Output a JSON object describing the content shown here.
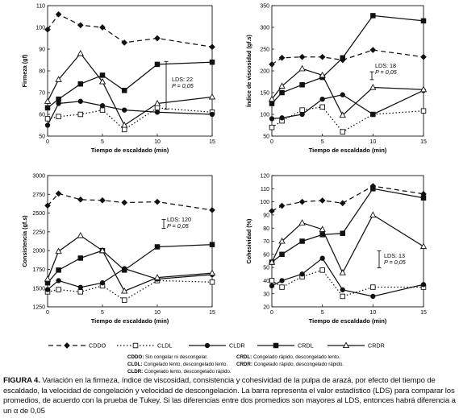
{
  "chart_data": [
    {
      "type": "line",
      "ylabel": "Firmeza (gf)",
      "xlabel": "Tiempo de escaldado (min)",
      "xlim": [
        0,
        15
      ],
      "ylim": [
        50,
        110
      ],
      "xticks": [
        "0",
        "5",
        "10",
        "15"
      ],
      "yticks": [
        "50",
        "60",
        "70",
        "80",
        "90",
        "100",
        "110"
      ],
      "annotation": {
        "lds_text": "LDS: 22",
        "p_text": "P = 0,05",
        "lds_value": 22
      },
      "series": [
        {
          "name": "CDDO",
          "x": [
            0,
            1,
            3,
            5,
            7,
            10,
            15
          ],
          "y": [
            99,
            106,
            101,
            100,
            93,
            95,
            91
          ]
        },
        {
          "name": "CLDL",
          "x": [
            0,
            1,
            3,
            5,
            7,
            10,
            15
          ],
          "y": [
            58,
            59,
            60,
            62,
            53,
            63,
            61
          ]
        },
        {
          "name": "CLDR",
          "x": [
            0,
            1,
            3,
            5,
            7,
            10,
            15
          ],
          "y": [
            55,
            65,
            66,
            64,
            62,
            61,
            60
          ]
        },
        {
          "name": "CRDL",
          "x": [
            0,
            1,
            3,
            5,
            7,
            10,
            15
          ],
          "y": [
            63,
            67,
            74,
            78,
            71,
            83,
            84
          ]
        },
        {
          "name": "CRDR",
          "x": [
            0,
            1,
            3,
            5,
            7,
            10,
            15
          ],
          "y": [
            66,
            76,
            88,
            75,
            55,
            65,
            68
          ]
        }
      ]
    },
    {
      "type": "line",
      "ylabel": "Índice de viscosidad (gf.s)",
      "xlabel": "Tiempo de escaldado (min)",
      "xlim": [
        0,
        15
      ],
      "ylim": [
        50,
        350
      ],
      "xticks": [
        "0",
        "5",
        "10",
        "15"
      ],
      "yticks": [
        "50",
        "100",
        "150",
        "200",
        "250",
        "300",
        "350"
      ],
      "annotation": {
        "lds_text": "LDS: 18",
        "p_text": "P = 0,05",
        "lds_value": 18
      },
      "series": [
        {
          "name": "CDDO",
          "x": [
            0,
            1,
            3,
            5,
            7,
            10,
            15
          ],
          "y": [
            215,
            230,
            232,
            232,
            225,
            248,
            232
          ]
        },
        {
          "name": "CLDL",
          "x": [
            0,
            1,
            3,
            5,
            7,
            10,
            15
          ],
          "y": [
            70,
            85,
            110,
            117,
            60,
            100,
            108
          ]
        },
        {
          "name": "CLDR",
          "x": [
            0,
            1,
            3,
            5,
            7,
            10,
            15
          ],
          "y": [
            90,
            92,
            100,
            135,
            145,
            100,
            155
          ]
        },
        {
          "name": "CRDL",
          "x": [
            0,
            1,
            3,
            5,
            7,
            10,
            15
          ],
          "y": [
            125,
            150,
            168,
            185,
            230,
            327,
            315
          ]
        },
        {
          "name": "CRDR",
          "x": [
            0,
            1,
            3,
            5,
            7,
            10,
            15
          ],
          "y": [
            135,
            165,
            205,
            190,
            98,
            162,
            157
          ]
        }
      ]
    },
    {
      "type": "line",
      "ylabel": "Consistencia (gf.s)",
      "xlabel": "Tiempo de escaldado (min)",
      "xlim": [
        0,
        15
      ],
      "ylim": [
        1250,
        3000
      ],
      "xticks": [
        "0",
        "5",
        "10",
        "15"
      ],
      "yticks": [
        "1250",
        "1500",
        "1750",
        "2000",
        "2250",
        "2500",
        "2750",
        "3000"
      ],
      "annotation": {
        "lds_text": "LDS: 120",
        "p_text": "P = 0,05",
        "lds_value": 120
      },
      "series": [
        {
          "name": "CDDO",
          "x": [
            0,
            1,
            3,
            5,
            7,
            10,
            15
          ],
          "y": [
            2600,
            2760,
            2680,
            2670,
            2640,
            2650,
            2540
          ]
        },
        {
          "name": "CLDL",
          "x": [
            0,
            1,
            3,
            5,
            7,
            10,
            15
          ],
          "y": [
            1450,
            1480,
            1450,
            1530,
            1340,
            1600,
            1580
          ]
        },
        {
          "name": "CLDR",
          "x": [
            0,
            1,
            3,
            5,
            7,
            10,
            15
          ],
          "y": [
            1480,
            1600,
            1510,
            1570,
            1760,
            1620,
            1680
          ]
        },
        {
          "name": "CRDL",
          "x": [
            0,
            1,
            3,
            5,
            7,
            10,
            15
          ],
          "y": [
            1570,
            1740,
            1900,
            2000,
            1740,
            2050,
            2080
          ]
        },
        {
          "name": "CRDR",
          "x": [
            0,
            1,
            3,
            5,
            7,
            10,
            15
          ],
          "y": [
            1620,
            1990,
            2200,
            2000,
            1460,
            1640,
            1700
          ]
        }
      ]
    },
    {
      "type": "line",
      "ylabel": "Cohesividad (%)",
      "xlabel": "Tiempo de escaldado (min)",
      "xlim": [
        0,
        15
      ],
      "ylim": [
        20,
        120
      ],
      "xticks": [
        "0",
        "5",
        "10",
        "15"
      ],
      "yticks": [
        "20",
        "30",
        "40",
        "50",
        "60",
        "70",
        "80",
        "90",
        "100",
        "110",
        "120"
      ],
      "annotation": {
        "lds_text": "LDS: 13",
        "p_text": "P = 0,05",
        "lds_value": 13
      },
      "series": [
        {
          "name": "CDDO",
          "x": [
            0,
            1,
            3,
            5,
            7,
            10,
            15
          ],
          "y": [
            93,
            97,
            100,
            101,
            99,
            112,
            106
          ]
        },
        {
          "name": "CLDL",
          "x": [
            0,
            1,
            3,
            5,
            7,
            10,
            15
          ],
          "y": [
            40,
            35,
            43,
            48,
            28,
            35,
            35
          ]
        },
        {
          "name": "CLDR",
          "x": [
            0,
            1,
            3,
            5,
            7,
            10,
            15
          ],
          "y": [
            36,
            40,
            45,
            57,
            33,
            28,
            37
          ]
        },
        {
          "name": "CRDL",
          "x": [
            0,
            1,
            3,
            5,
            7,
            10,
            15
          ],
          "y": [
            54,
            60,
            70,
            75,
            76,
            110,
            103
          ]
        },
        {
          "name": "CRDR",
          "x": [
            0,
            1,
            3,
            5,
            7,
            10,
            15
          ],
          "y": [
            54,
            70,
            84,
            79,
            46,
            90,
            66
          ]
        }
      ]
    }
  ],
  "legend": {
    "items": [
      {
        "name": "CDDO",
        "style": "dash-diamond"
      },
      {
        "name": "CLDL",
        "style": "dot-open-square"
      },
      {
        "name": "CLDR",
        "style": "solid-filled-circle"
      },
      {
        "name": "CRDL",
        "style": "solid-filled-square"
      },
      {
        "name": "CRDR",
        "style": "solid-open-triangle"
      }
    ],
    "definitions_left": [
      "CDDO: Sin congelar ni descongelar.",
      "CLDL: Congelado lento, descongelado lento.",
      "CLDR: Congelado lento, descongelado rápido."
    ],
    "definitions_right": [
      "CRDL: Congelado rápido, descongelado lento.",
      "CRDR: Congelado rápido, descongelado rápido."
    ]
  },
  "caption": {
    "label": "FIGURA 4.",
    "text": " Variación en la firmeza, índice de viscosidad, consistencia y cohesividad de la pulpa de arazá, por efecto del tiempo de escaldado, la velocidad de congelación y velocidad de descongelación. La barra representa el valor estadístico (LDS) para comparar los promedios, de acuerdo con la prueba de Tukey. Si las diferencias entre dos promedios son mayores al LDS, entonces habrá diferencia a un α de 0,05"
  }
}
